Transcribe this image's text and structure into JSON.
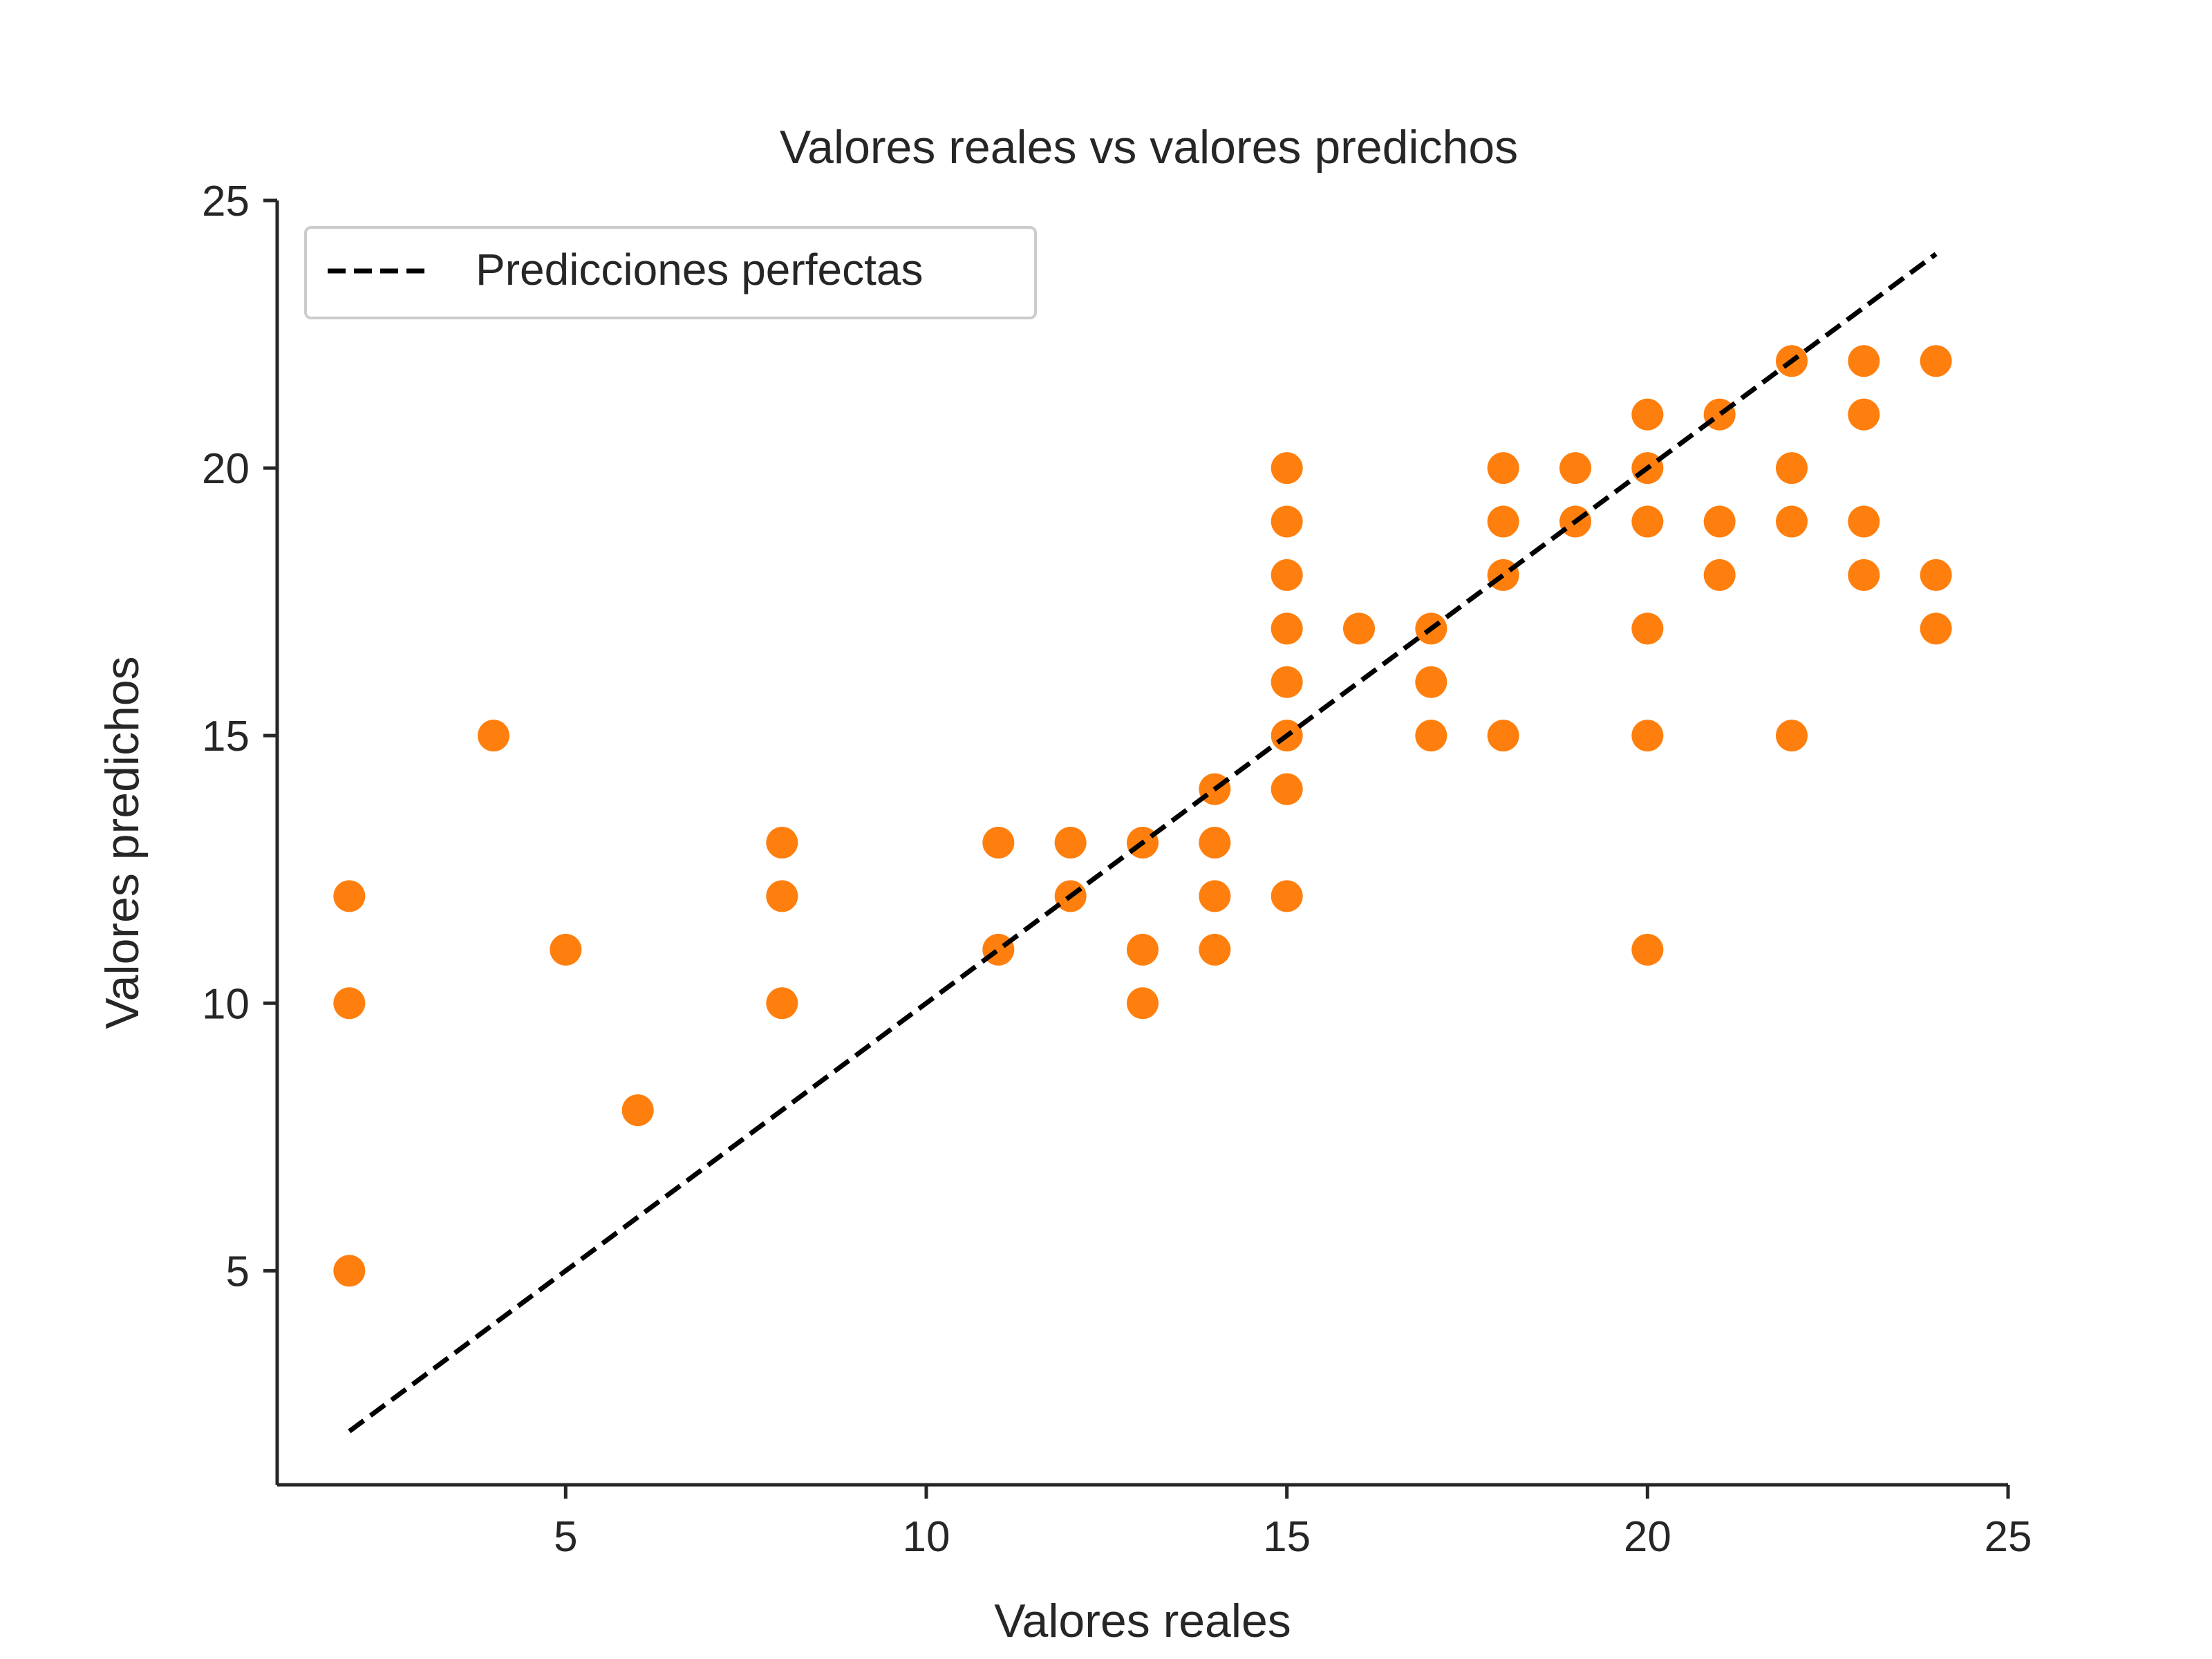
{
  "chart_data": {
    "type": "scatter",
    "title": "Valores reales vs valores predichos",
    "xlabel": "Valores reales",
    "ylabel": "Valores predichos",
    "xlim": [
      1,
      25
    ],
    "ylim": [
      1,
      25
    ],
    "xticks": [
      5,
      10,
      15,
      20,
      25
    ],
    "yticks": [
      5,
      10,
      15,
      20,
      25
    ],
    "grid": false,
    "legend_position": "top-left",
    "series": [
      {
        "kind": "scatter",
        "color": "#ff7f0e",
        "points": [
          [
            2,
            12
          ],
          [
            2,
            10
          ],
          [
            2,
            5
          ],
          [
            4,
            15
          ],
          [
            5,
            11
          ],
          [
            6,
            8
          ],
          [
            8,
            13
          ],
          [
            8,
            12
          ],
          [
            8,
            10
          ],
          [
            11,
            13
          ],
          [
            11,
            11
          ],
          [
            12,
            13
          ],
          [
            12,
            12
          ],
          [
            13,
            13
          ],
          [
            13,
            11
          ],
          [
            13,
            10
          ],
          [
            14,
            14
          ],
          [
            14,
            13
          ],
          [
            14,
            12
          ],
          [
            14,
            11
          ],
          [
            15,
            20
          ],
          [
            15,
            19
          ],
          [
            15,
            18
          ],
          [
            15,
            17
          ],
          [
            15,
            16
          ],
          [
            15,
            15
          ],
          [
            15,
            14
          ],
          [
            15,
            12
          ],
          [
            16,
            17
          ],
          [
            17,
            17
          ],
          [
            17,
            16
          ],
          [
            17,
            15
          ],
          [
            18,
            20
          ],
          [
            18,
            19
          ],
          [
            18,
            18
          ],
          [
            18,
            15
          ],
          [
            19,
            20
          ],
          [
            19,
            19
          ],
          [
            20,
            21
          ],
          [
            20,
            20
          ],
          [
            20,
            19
          ],
          [
            20,
            17
          ],
          [
            20,
            15
          ],
          [
            20,
            11
          ],
          [
            21,
            21
          ],
          [
            21,
            19
          ],
          [
            21,
            18
          ],
          [
            22,
            22
          ],
          [
            22,
            20
          ],
          [
            22,
            19
          ],
          [
            22,
            15
          ],
          [
            23,
            22
          ],
          [
            23,
            21
          ],
          [
            23,
            19
          ],
          [
            23,
            18
          ],
          [
            24,
            22
          ],
          [
            24,
            18
          ],
          [
            24,
            17
          ]
        ]
      },
      {
        "kind": "line",
        "name": "Predicciones perfectas",
        "style": "dashed",
        "color": "#000000",
        "x": [
          2,
          24
        ],
        "y": [
          2,
          24
        ]
      }
    ]
  }
}
